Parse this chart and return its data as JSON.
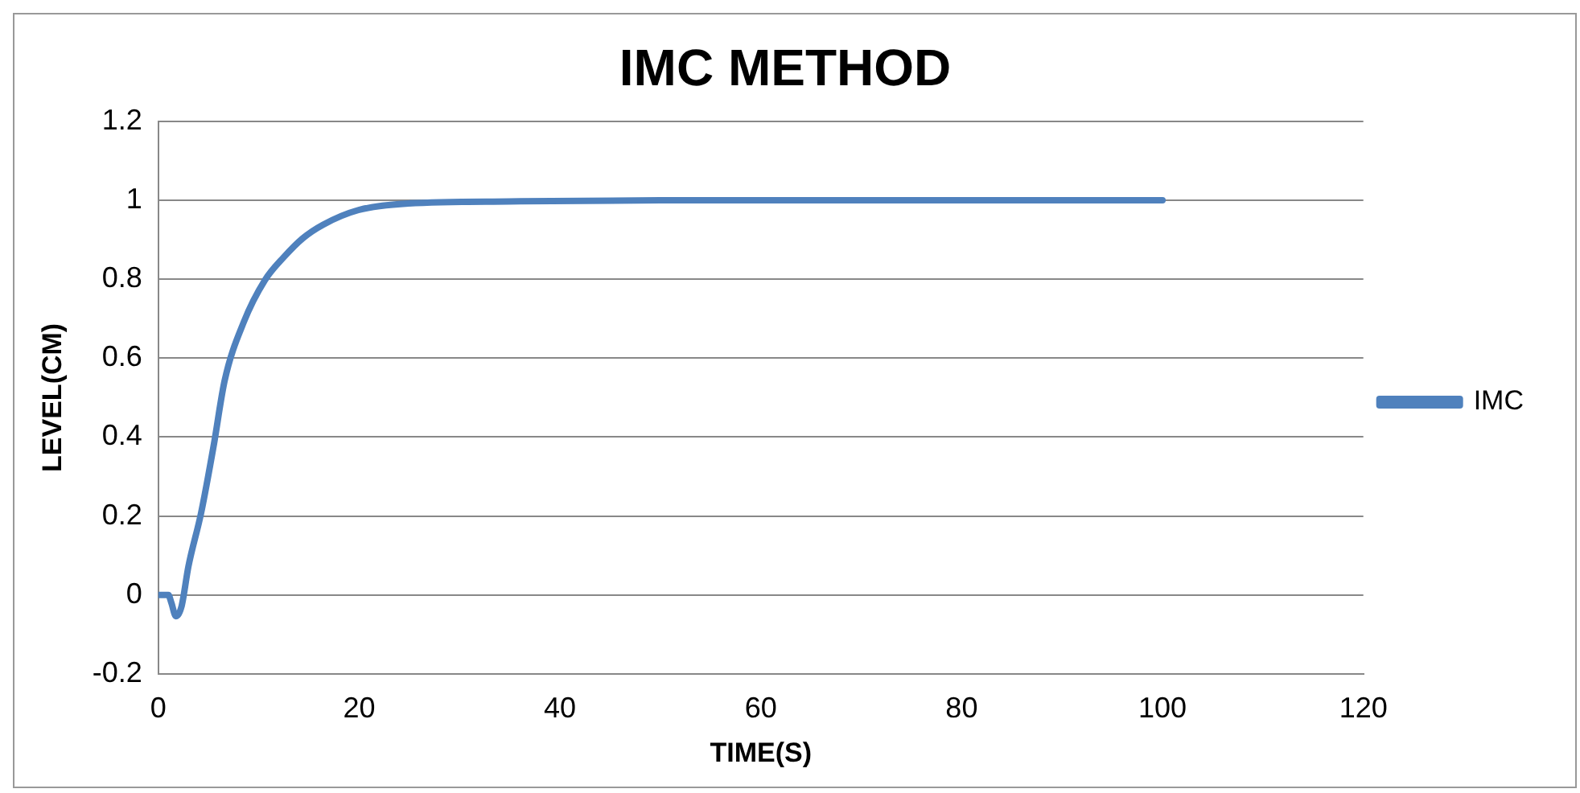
{
  "chart_data": {
    "type": "line",
    "title": "IMC METHOD",
    "xlabel": "TIME(S)",
    "ylabel": "LEVEL(CM)",
    "x": [
      0,
      1,
      1.3,
      1.75,
      2.3,
      3,
      4.25,
      5.5,
      6.6,
      8.5,
      10.6,
      12.5,
      14.4,
      16.4,
      19.9,
      24.9,
      34.9,
      50,
      70,
      100
    ],
    "series": [
      {
        "name": "IMC",
        "color": "#4f81bd",
        "values": [
          0,
          0,
          -0.02,
          -0.054,
          -0.03,
          0.073,
          0.207,
          0.377,
          0.543,
          0.691,
          0.797,
          0.856,
          0.904,
          0.938,
          0.975,
          0.992,
          0.997,
          1,
          1,
          1
        ]
      }
    ],
    "xlim": [
      0,
      120
    ],
    "xticks": [
      0,
      20,
      40,
      60,
      80,
      100,
      120
    ],
    "ylim": [
      -0.2,
      1.2
    ],
    "yticks": [
      -0.2,
      0,
      0.2,
      0.4,
      0.6,
      0.8,
      1,
      1.2
    ],
    "grid": "y",
    "legend": "right",
    "marker": "none",
    "line_style": "solid"
  }
}
